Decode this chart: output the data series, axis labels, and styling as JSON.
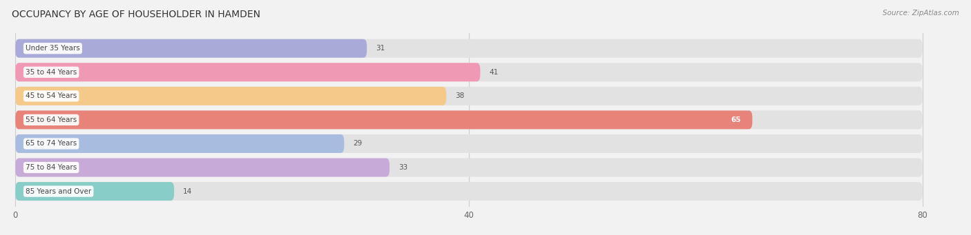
{
  "title": "OCCUPANCY BY AGE OF HOUSEHOLDER IN HAMDEN",
  "source": "Source: ZipAtlas.com",
  "categories": [
    "Under 35 Years",
    "35 to 44 Years",
    "45 to 54 Years",
    "55 to 64 Years",
    "65 to 74 Years",
    "75 to 84 Years",
    "85 Years and Over"
  ],
  "values": [
    31,
    41,
    38,
    65,
    29,
    33,
    14
  ],
  "bar_colors": [
    "#aaaad8",
    "#f099b5",
    "#f5c98a",
    "#e8837a",
    "#a8bce0",
    "#c8aad8",
    "#88cdc8"
  ],
  "xlim_max": 80,
  "xticks": [
    0,
    40,
    80
  ],
  "background_color": "#f2f2f2",
  "bar_background_color": "#e2e2e2",
  "title_fontsize": 10,
  "bar_height": 0.78,
  "figsize": [
    14.06,
    3.41
  ],
  "dpi": 100
}
